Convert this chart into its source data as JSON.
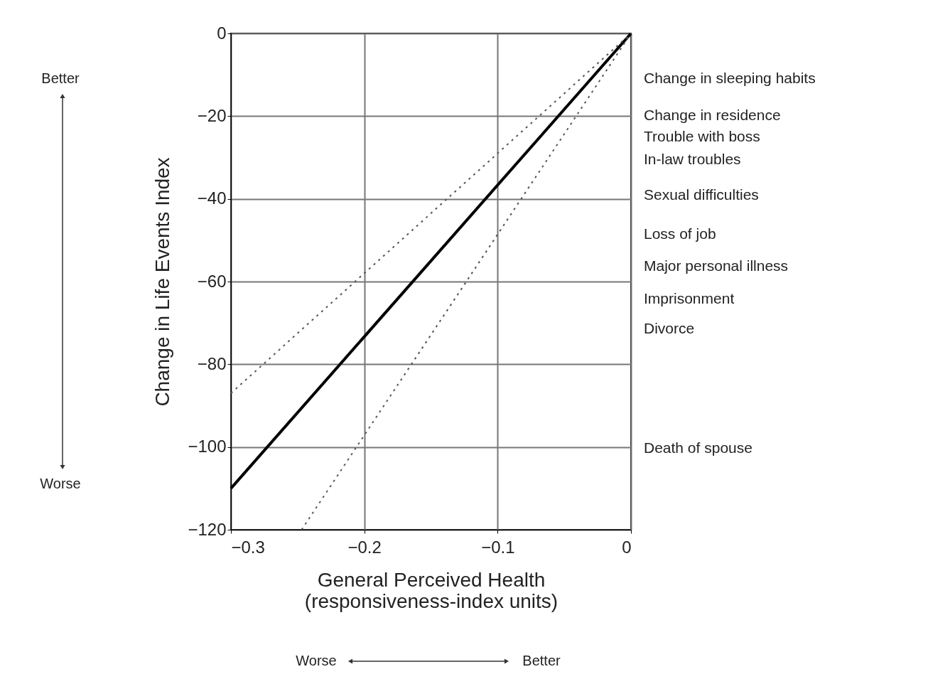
{
  "chart_data": {
    "type": "line",
    "xlabel": "General Perceived Health\n(responsiveness-index units)",
    "ylabel": "Change in Life Events Index",
    "xlim": [
      -0.3,
      0
    ],
    "ylim": [
      -120,
      0
    ],
    "xticks": [
      -0.3,
      -0.2,
      -0.1,
      0
    ],
    "yticks": [
      0,
      -20,
      -40,
      -60,
      -80,
      -100,
      -120
    ],
    "grid": true,
    "marker": "none",
    "series": [
      {
        "color": "#000000",
        "line_style": "solid",
        "x": [
          -0.3,
          0
        ],
        "values": [
          -110,
          0
        ]
      },
      {
        "color": "#555555",
        "line_style": "dotted",
        "x": [
          -0.3,
          0
        ],
        "values": [
          -87,
          0
        ]
      },
      {
        "color": "#555555",
        "line_style": "dotted",
        "x": [
          -0.247,
          0
        ],
        "values": [
          -120,
          0
        ]
      }
    ],
    "annotations": [
      "Change in sleeping habits",
      "Change in residence",
      "Trouble with boss",
      "In-law troubles",
      "Sexual difficulties",
      "Loss of job",
      "Major personal illness",
      "Imprisonment",
      "Divorce",
      "Death of spouse",
      "Better",
      "Worse",
      "Worse",
      "Better"
    ]
  }
}
